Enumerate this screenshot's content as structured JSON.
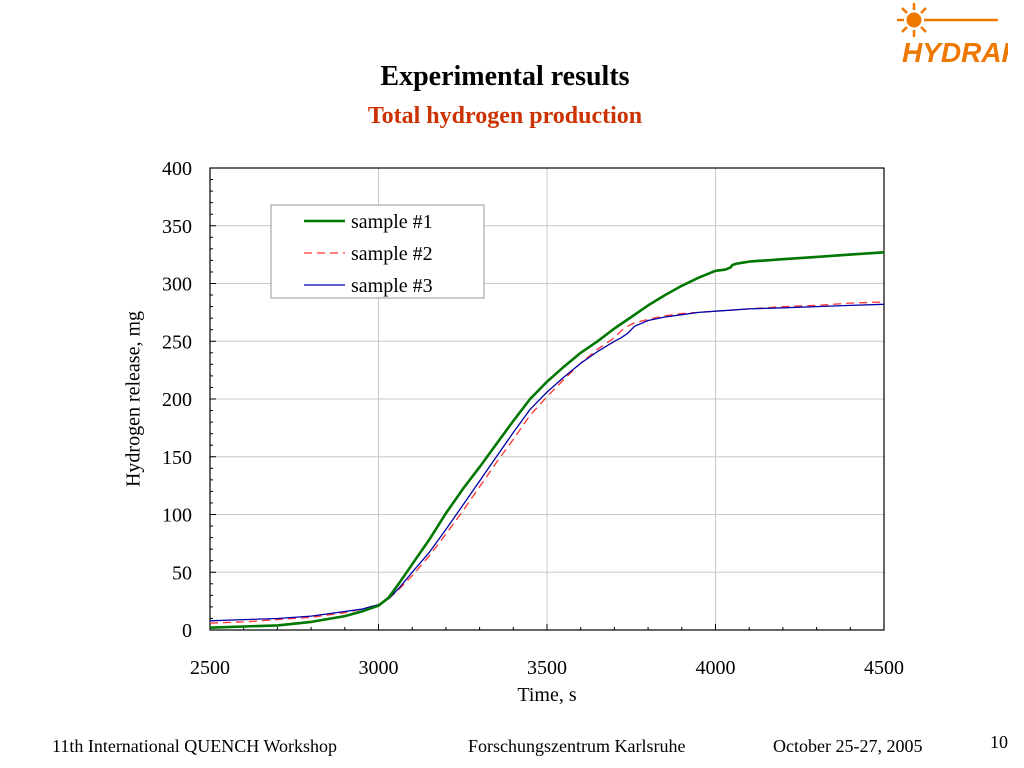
{
  "slide": {
    "title": "Experimental results",
    "subtitle": "Total hydrogen production",
    "logo_text": "HYDRAP",
    "accent_color": "#ee7700",
    "subtitle_color": "#cc3300"
  },
  "footer": {
    "left": "11th International QUENCH Workshop",
    "center": "Forschungszentrum Karlsruhe",
    "right": "October 25-27, 2005",
    "page_number": "10"
  },
  "chart_data": {
    "type": "line",
    "title": "",
    "xlabel": "Time, s",
    "ylabel": "Hydrogen release, mg",
    "xlim": [
      2500,
      4500
    ],
    "ylim": [
      0,
      400
    ],
    "x_ticks": [
      2500,
      3000,
      3500,
      4000,
      4500
    ],
    "y_ticks": [
      0,
      50,
      100,
      150,
      200,
      250,
      300,
      350,
      400
    ],
    "grid": true,
    "legend_position": "top-left",
    "series": [
      {
        "name": "sample #1",
        "color": "#007700",
        "style": "solid",
        "x": [
          2500,
          2600,
          2700,
          2800,
          2900,
          2950,
          3000,
          3030,
          3060,
          3100,
          3150,
          3200,
          3250,
          3300,
          3350,
          3400,
          3450,
          3500,
          3550,
          3600,
          3650,
          3700,
          3750,
          3800,
          3850,
          3900,
          3950,
          4000,
          4030,
          4045,
          4050,
          4060,
          4080,
          4100,
          4150,
          4200,
          4300,
          4400,
          4500
        ],
        "y": [
          2,
          3,
          4,
          7,
          12,
          16,
          21,
          28,
          40,
          57,
          78,
          101,
          122,
          141,
          161,
          181,
          200,
          215,
          228,
          240,
          250,
          261,
          271,
          281,
          290,
          298,
          305,
          311,
          312,
          314,
          316,
          317,
          318,
          319,
          320,
          321,
          323,
          325,
          327
        ]
      },
      {
        "name": "sample #2",
        "color": "#ff3333",
        "style": "dashed",
        "x": [
          2500,
          2600,
          2700,
          2800,
          2900,
          2950,
          3000,
          3030,
          3060,
          3100,
          3150,
          3200,
          3250,
          3300,
          3350,
          3400,
          3450,
          3500,
          3550,
          3600,
          3650,
          3700,
          3720,
          3740,
          3760,
          3800,
          3850,
          3900,
          3950,
          4000,
          4100,
          4200,
          4300,
          4400,
          4500
        ],
        "y": [
          6,
          7,
          9,
          11,
          15,
          18,
          22,
          27,
          35,
          47,
          64,
          83,
          103,
          124,
          145,
          165,
          186,
          202,
          217,
          231,
          243,
          253,
          259,
          263,
          266,
          269,
          272,
          274,
          275,
          276,
          278,
          280,
          281,
          283,
          284
        ]
      },
      {
        "name": "sample #3",
        "color": "#0000aa",
        "style": "solid",
        "x": [
          2500,
          2600,
          2700,
          2800,
          2900,
          2950,
          3000,
          3030,
          3060,
          3100,
          3150,
          3200,
          3250,
          3300,
          3350,
          3400,
          3450,
          3500,
          3550,
          3600,
          3650,
          3700,
          3720,
          3740,
          3760,
          3800,
          3850,
          3900,
          3950,
          4000,
          4100,
          4200,
          4300,
          4400,
          4500
        ],
        "y": [
          8,
          9,
          10,
          12,
          16,
          18,
          22,
          27,
          36,
          50,
          67,
          87,
          108,
          129,
          150,
          171,
          191,
          206,
          219,
          231,
          241,
          250,
          253,
          257,
          263,
          268,
          271,
          273,
          275,
          276,
          278,
          279,
          280,
          281,
          282
        ]
      }
    ]
  }
}
